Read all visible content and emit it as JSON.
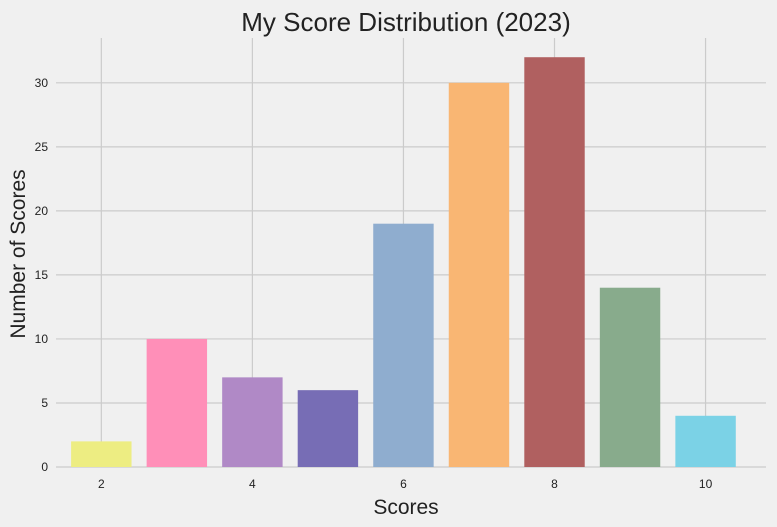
{
  "chart_data": {
    "type": "bar",
    "title": "My Score Distribution (2023)",
    "xlabel": "Scores",
    "ylabel": "Number of Scores",
    "x": [
      2,
      3,
      4,
      5,
      6,
      7,
      8,
      9,
      10
    ],
    "values": [
      2,
      10,
      7,
      6,
      19,
      30,
      32,
      14,
      4
    ],
    "colors": [
      "#eded82",
      "#ff8fb8",
      "#b089c6",
      "#776db5",
      "#8fadcf",
      "#f9b673",
      "#b06060",
      "#88ab8c",
      "#7bd2e6"
    ],
    "xticks": [
      2,
      4,
      6,
      8,
      10
    ],
    "yticks": [
      0,
      5,
      10,
      15,
      20,
      25,
      30
    ],
    "xlim": [
      1.4,
      10.8
    ],
    "ylim": [
      0,
      33.5
    ],
    "grid": true,
    "background": "#f0f0f0",
    "grid_color": "#cbcbcb"
  }
}
